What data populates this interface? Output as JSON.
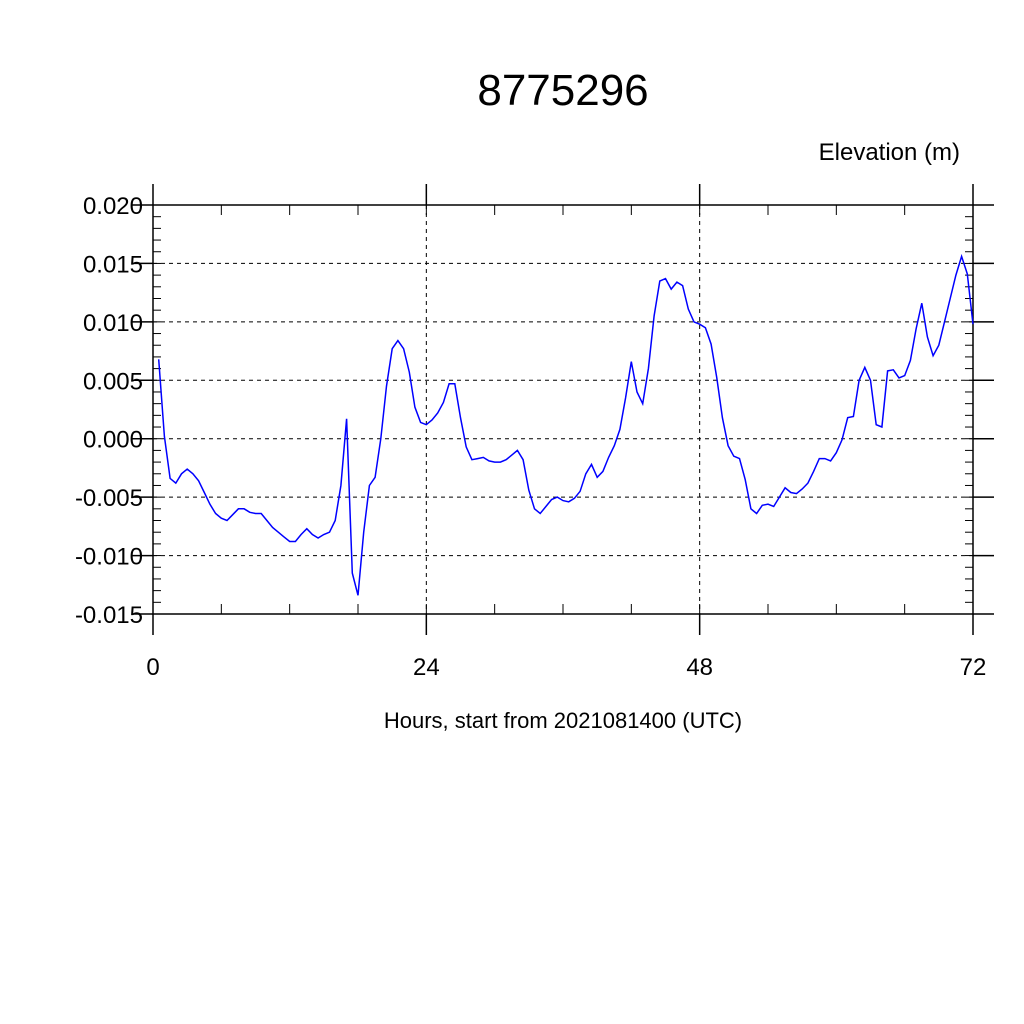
{
  "chart_data": {
    "type": "line",
    "title": "8775296",
    "ylabel": "Elevation (m)",
    "xlabel": "Hours, start from 2021081400 (UTC)",
    "xlim": [
      0,
      72
    ],
    "ylim": [
      -0.015,
      0.02
    ],
    "xticks": [
      0,
      24,
      48,
      72
    ],
    "xtick_labels": [
      "0",
      "24",
      "48",
      "72"
    ],
    "yticks": [
      -0.015,
      -0.01,
      -0.005,
      0.0,
      0.005,
      0.01,
      0.015,
      0.02
    ],
    "ytick_labels": [
      "-0.015",
      "-0.010",
      "-0.005",
      "0.000",
      "0.005",
      "0.010",
      "0.015",
      "0.020"
    ],
    "grid": true,
    "series_color": "#0000ff",
    "series": [
      {
        "x": [
          0.5,
          1,
          1.5,
          2,
          2.5,
          3,
          3.5,
          4,
          4.5,
          5,
          5.5,
          6,
          6.5,
          7,
          7.5,
          8,
          8.5,
          9,
          9.5,
          10,
          10.5,
          11,
          11.5,
          12,
          12.5,
          13,
          13.5,
          14,
          14.5,
          15,
          15.5,
          16,
          16.5,
          17,
          17.5,
          18,
          18.5,
          19,
          19.5,
          20,
          20.5,
          21,
          21.5,
          22,
          22.5,
          23,
          23.5,
          24,
          24.5,
          25,
          25.5,
          26,
          26.5,
          27,
          27.5,
          28,
          28.5,
          29,
          29.5,
          30,
          30.5,
          31,
          31.5,
          32,
          32.5,
          33,
          33.5,
          34,
          34.5,
          35,
          35.5,
          36,
          36.5,
          37,
          37.5,
          38,
          38.5,
          39,
          39.5,
          40,
          40.5,
          41,
          41.5,
          42,
          42.5,
          43,
          43.5,
          44,
          44.5,
          45,
          45.5,
          46,
          46.5,
          47,
          47.5,
          48,
          48.5,
          49,
          49.5,
          50,
          50.5,
          51,
          51.5,
          52,
          52.5,
          53,
          53.5,
          54,
          54.5,
          55,
          55.5,
          56,
          56.5,
          57,
          57.5,
          58,
          58.5,
          59,
          59.5,
          60,
          60.5,
          61,
          61.5,
          62,
          62.5,
          63,
          63.5,
          64,
          64.5,
          65,
          65.5,
          66,
          66.5,
          67,
          67.5,
          68,
          68.5,
          69,
          69.5,
          70,
          70.5,
          71,
          71.5,
          72
        ],
        "y": [
          0.0068,
          0.0002,
          -0.0034,
          -0.0038,
          -0.003,
          -0.0026,
          -0.003,
          -0.0036,
          -0.0046,
          -0.0056,
          -0.0064,
          -0.0068,
          -0.007,
          -0.0065,
          -0.006,
          -0.006,
          -0.0063,
          -0.0064,
          -0.0064,
          -0.007,
          -0.0076,
          -0.008,
          -0.0084,
          -0.0088,
          -0.0088,
          -0.0082,
          -0.0077,
          -0.0082,
          -0.0085,
          -0.0082,
          -0.008,
          -0.007,
          -0.004,
          0.0017,
          -0.0115,
          -0.0134,
          -0.008,
          -0.004,
          -0.0033,
          0.0,
          0.0045,
          0.0077,
          0.0084,
          0.0077,
          0.0057,
          0.0027,
          0.0014,
          0.0012,
          0.0016,
          0.0022,
          0.0031,
          0.0047,
          0.0047,
          0.0018,
          -0.0007,
          -0.0018,
          -0.0017,
          -0.0016,
          -0.0019,
          -0.002,
          -0.002,
          -0.0018,
          -0.0014,
          -0.001,
          -0.0018,
          -0.0044,
          -0.006,
          -0.0064,
          -0.0058,
          -0.0052,
          -0.005,
          -0.0053,
          -0.0054,
          -0.0051,
          -0.0045,
          -0.003,
          -0.0022,
          -0.0033,
          -0.0028,
          -0.0016,
          -0.0006,
          0.0008,
          0.0035,
          0.0066,
          0.004,
          0.003,
          0.006,
          0.0105,
          0.0135,
          0.0137,
          0.0128,
          0.0134,
          0.0131,
          0.0111,
          0.01,
          0.0098,
          0.0095,
          0.0081,
          0.0052,
          0.0018,
          -0.0006,
          -0.0015,
          -0.0017,
          -0.0035,
          -0.006,
          -0.0064,
          -0.0057,
          -0.0056,
          -0.0058,
          -0.005,
          -0.0042,
          -0.0046,
          -0.0047,
          -0.0043,
          -0.0038,
          -0.0028,
          -0.0017,
          -0.0017,
          -0.0019,
          -0.0012,
          -0.0001,
          0.0018,
          0.0019,
          0.005,
          0.0061,
          0.005,
          0.0012,
          0.001,
          0.0058,
          0.0059,
          0.0052,
          0.0054,
          0.0067,
          0.0094,
          0.0116,
          0.0087,
          0.0071,
          0.008,
          0.01,
          0.012,
          0.014,
          0.0156,
          0.0141,
          0.0098
        ]
      }
    ]
  }
}
